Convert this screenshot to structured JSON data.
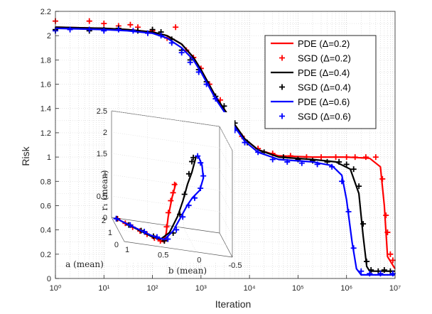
{
  "chart_data": [
    {
      "type": "line",
      "xlabel": "Iteration",
      "ylabel": "Risk",
      "xscale": "log",
      "xlim": [
        1,
        10000000
      ],
      "ylim": [
        0,
        2.2
      ],
      "xticks": [
        1,
        10,
        100,
        1000,
        10000,
        100000,
        1000000,
        10000000
      ],
      "xtick_labels": [
        "10⁰",
        "10¹",
        "10²",
        "10³",
        "10⁴",
        "10⁵",
        "10⁶",
        "10⁷"
      ],
      "yticks": [
        "0",
        "0.2",
        "0.4",
        "0.6",
        "0.8",
        "1",
        "1.2",
        "1.4",
        "1.6",
        "1.8",
        "2",
        "2.2"
      ],
      "grid": "major and minor, dotted",
      "legend_position": "top-right",
      "series": [
        {
          "name": "PDE (Δ=0.2)",
          "style": "line",
          "color": "#ff0000",
          "x": [
            1,
            10,
            30,
            100,
            200,
            400,
            700,
            1000,
            2000,
            4000,
            8000,
            15000,
            40000,
            200000,
            1000000,
            3000000,
            5000000,
            6000000,
            7000000,
            10000000
          ],
          "y": [
            2.07,
            2.06,
            2.05,
            2.03,
            2.0,
            1.93,
            1.82,
            1.72,
            1.5,
            1.32,
            1.15,
            1.06,
            1.01,
            1.0,
            1.0,
            0.99,
            0.92,
            0.6,
            0.18,
            0.08
          ]
        },
        {
          "name": "SGD (Δ=0.2)",
          "style": "marker",
          "color": "#ff0000",
          "x": [
            1,
            5,
            10,
            20,
            35,
            50,
            100,
            200,
            300,
            500,
            700,
            1000,
            1500,
            2500,
            4000,
            7000,
            15000,
            30000,
            70000,
            150000,
            300000,
            600000,
            1000000,
            1500000,
            2500000,
            4000000,
            5500000,
            6500000,
            7000000,
            8000000,
            9000000
          ],
          "y": [
            2.12,
            2.12,
            2.1,
            2.08,
            2.09,
            2.07,
            2.04,
            1.98,
            2.07,
            1.88,
            1.82,
            1.73,
            1.6,
            1.47,
            1.33,
            1.17,
            1.07,
            1.03,
            1.01,
            1.0,
            1.0,
            1.0,
            1.0,
            1.0,
            1.0,
            1.0,
            0.82,
            0.52,
            0.38,
            0.2,
            0.15
          ]
        },
        {
          "name": "PDE (Δ=0.4)",
          "style": "line",
          "color": "#000000",
          "x": [
            1,
            10,
            30,
            100,
            200,
            400,
            700,
            1000,
            2000,
            4000,
            8000,
            15000,
            40000,
            200000,
            600000,
            1200000,
            1800000,
            2200000,
            2600000,
            3000000,
            10000000
          ],
          "y": [
            2.07,
            2.06,
            2.05,
            2.03,
            2.0,
            1.93,
            1.82,
            1.72,
            1.5,
            1.32,
            1.15,
            1.06,
            1.0,
            0.98,
            0.96,
            0.9,
            0.7,
            0.35,
            0.1,
            0.06,
            0.06
          ]
        },
        {
          "name": "SGD (Δ=0.4)",
          "style": "marker",
          "color": "#000000",
          "x": [
            1,
            5,
            10,
            20,
            50,
            100,
            150,
            250,
            400,
            600,
            900,
            1300,
            2000,
            3000,
            5000,
            9000,
            20000,
            50000,
            100000,
            200000,
            400000,
            700000,
            1000000,
            1400000,
            1800000,
            2200000,
            2600000,
            3200000,
            4500000,
            6000000,
            8000000
          ],
          "y": [
            2.05,
            2.04,
            2.05,
            2.06,
            2.04,
            2.05,
            2.03,
            1.97,
            1.88,
            1.8,
            1.72,
            1.62,
            1.5,
            1.42,
            1.28,
            1.12,
            1.04,
            1.0,
            0.98,
            0.97,
            0.96,
            0.96,
            0.94,
            0.9,
            0.76,
            0.45,
            0.14,
            0.07,
            0.06,
            0.07,
            0.06
          ]
        },
        {
          "name": "PDE (Δ=0.6)",
          "style": "line",
          "color": "#0000ff",
          "x": [
            1,
            10,
            30,
            100,
            200,
            400,
            700,
            1000,
            2000,
            4000,
            8000,
            15000,
            40000,
            200000,
            500000,
            800000,
            1000000,
            1300000,
            1600000,
            2000000,
            10000000
          ],
          "y": [
            2.06,
            2.05,
            2.04,
            2.02,
            1.98,
            1.9,
            1.8,
            1.7,
            1.48,
            1.3,
            1.13,
            1.04,
            0.98,
            0.96,
            0.93,
            0.85,
            0.65,
            0.3,
            0.08,
            0.03,
            0.03
          ]
        },
        {
          "name": "SGD (Δ=0.6)",
          "style": "marker",
          "color": "#0000ff",
          "x": [
            1,
            2,
            5,
            10,
            20,
            40,
            80,
            150,
            250,
            400,
            600,
            900,
            1300,
            2000,
            3000,
            5000,
            8000,
            15000,
            30000,
            60000,
            120000,
            250000,
            500000,
            800000,
            1100000,
            1400000,
            2000000,
            3000000,
            5000000,
            9000000
          ],
          "y": [
            2.04,
            2.05,
            2.05,
            2.04,
            2.05,
            2.04,
            2.02,
            2.0,
            1.94,
            1.86,
            1.78,
            1.7,
            1.6,
            1.48,
            1.36,
            1.22,
            1.12,
            1.04,
            0.98,
            0.96,
            0.95,
            0.94,
            0.92,
            0.8,
            0.55,
            0.25,
            0.06,
            0.04,
            0.04,
            0.04
          ]
        }
      ]
    },
    {
      "type": "line",
      "inset": true,
      "projection": "3d",
      "xlabel": "b (mean)",
      "ylabel": "a (mean)",
      "zlabel": "r₁ (mean)",
      "xlim": [
        -0.5,
        1
      ],
      "ylim": [
        0,
        2
      ],
      "zlim": [
        0,
        2.5
      ],
      "xtick_labels": [
        "-0.5",
        "0",
        "0.5",
        "1"
      ],
      "ytick_labels": [
        "0",
        "1",
        "2"
      ],
      "ztick_labels": [
        "0",
        "0.5",
        "1",
        "1.5",
        "2",
        "2.5"
      ],
      "series": [
        {
          "name": "PDE (Δ=0.2)",
          "style": "line",
          "color": "#ff0000",
          "b": [
            0.95,
            0.9,
            0.85,
            0.8,
            0.75,
            0.7,
            0.6,
            0.5,
            0.45,
            0.42,
            0.4,
            0.38,
            0.33,
            0.28
          ],
          "a": [
            2.0,
            1.85,
            1.7,
            1.55,
            1.4,
            1.25,
            1.0,
            0.75,
            0.5,
            0.3,
            0.2,
            0.12,
            0.05,
            0.02
          ],
          "r1": [
            0.0,
            0.0,
            0.0,
            0.0,
            0.0,
            0.0,
            0.0,
            0.0,
            0.0,
            0.05,
            0.3,
            0.7,
            1.2,
            1.55
          ]
        },
        {
          "name": "SGD (Δ=0.2)",
          "style": "marker",
          "color": "#ff0000",
          "b": [
            0.92,
            0.84,
            0.76,
            0.68,
            0.6,
            0.52,
            0.46,
            0.42,
            0.4,
            0.38,
            0.35,
            0.32,
            0.3
          ],
          "a": [
            1.95,
            1.65,
            1.4,
            1.15,
            0.95,
            0.7,
            0.45,
            0.25,
            0.15,
            0.1,
            0.06,
            0.04,
            0.03
          ],
          "r1": [
            0.0,
            0.0,
            0.0,
            0.0,
            0.0,
            0.0,
            0.02,
            0.1,
            0.45,
            0.8,
            1.1,
            1.3,
            1.5
          ]
        },
        {
          "name": "PDE (Δ=0.4)",
          "style": "line",
          "color": "#000000",
          "b": [
            0.95,
            0.85,
            0.75,
            0.65,
            0.55,
            0.45,
            0.35,
            0.25,
            0.18,
            0.12,
            0.06,
            0.0
          ],
          "a": [
            2.0,
            1.7,
            1.4,
            1.1,
            0.8,
            0.5,
            0.25,
            0.1,
            0.05,
            0.03,
            0.02,
            0.01
          ],
          "r1": [
            0.0,
            0.0,
            0.0,
            0.0,
            0.0,
            0.05,
            0.3,
            0.75,
            1.15,
            1.55,
            1.85,
            2.25
          ]
        },
        {
          "name": "SGD (Δ=0.4)",
          "style": "marker",
          "color": "#000000",
          "b": [
            0.93,
            0.8,
            0.66,
            0.52,
            0.4,
            0.3,
            0.22,
            0.16,
            0.1,
            0.06,
            0.04
          ],
          "a": [
            1.95,
            1.55,
            1.2,
            0.85,
            0.5,
            0.25,
            0.1,
            0.05,
            0.03,
            0.02,
            0.02
          ],
          "r1": [
            0.0,
            0.0,
            0.0,
            0.0,
            0.02,
            0.3,
            0.8,
            1.3,
            1.8,
            2.1,
            2.2
          ]
        },
        {
          "name": "PDE (Δ=0.6)",
          "style": "line",
          "color": "#0000ff",
          "b": [
            0.95,
            0.85,
            0.7,
            0.55,
            0.4,
            0.3,
            0.2,
            0.12,
            0.05,
            -0.05,
            -0.1,
            -0.08,
            -0.03
          ],
          "a": [
            2.0,
            1.7,
            1.3,
            0.9,
            0.5,
            0.25,
            0.12,
            0.06,
            0.04,
            0.03,
            0.03,
            0.02,
            0.02
          ],
          "r1": [
            0.0,
            0.0,
            0.0,
            0.0,
            0.05,
            0.35,
            0.75,
            1.05,
            1.25,
            1.45,
            1.75,
            2.05,
            2.25
          ]
        },
        {
          "name": "SGD (Δ=0.6)",
          "style": "marker",
          "color": "#0000ff",
          "b": [
            0.94,
            0.78,
            0.62,
            0.48,
            0.36,
            0.26,
            0.18,
            0.1,
            0.02,
            -0.06,
            -0.1,
            -0.06,
            -0.02
          ],
          "a": [
            1.95,
            1.55,
            1.15,
            0.75,
            0.4,
            0.2,
            0.1,
            0.06,
            0.04,
            0.03,
            0.03,
            0.02,
            0.02
          ],
          "r1": [
            0.0,
            0.0,
            0.0,
            0.02,
            0.1,
            0.4,
            0.75,
            1.05,
            1.25,
            1.5,
            1.8,
            2.1,
            2.25
          ]
        }
      ]
    }
  ]
}
